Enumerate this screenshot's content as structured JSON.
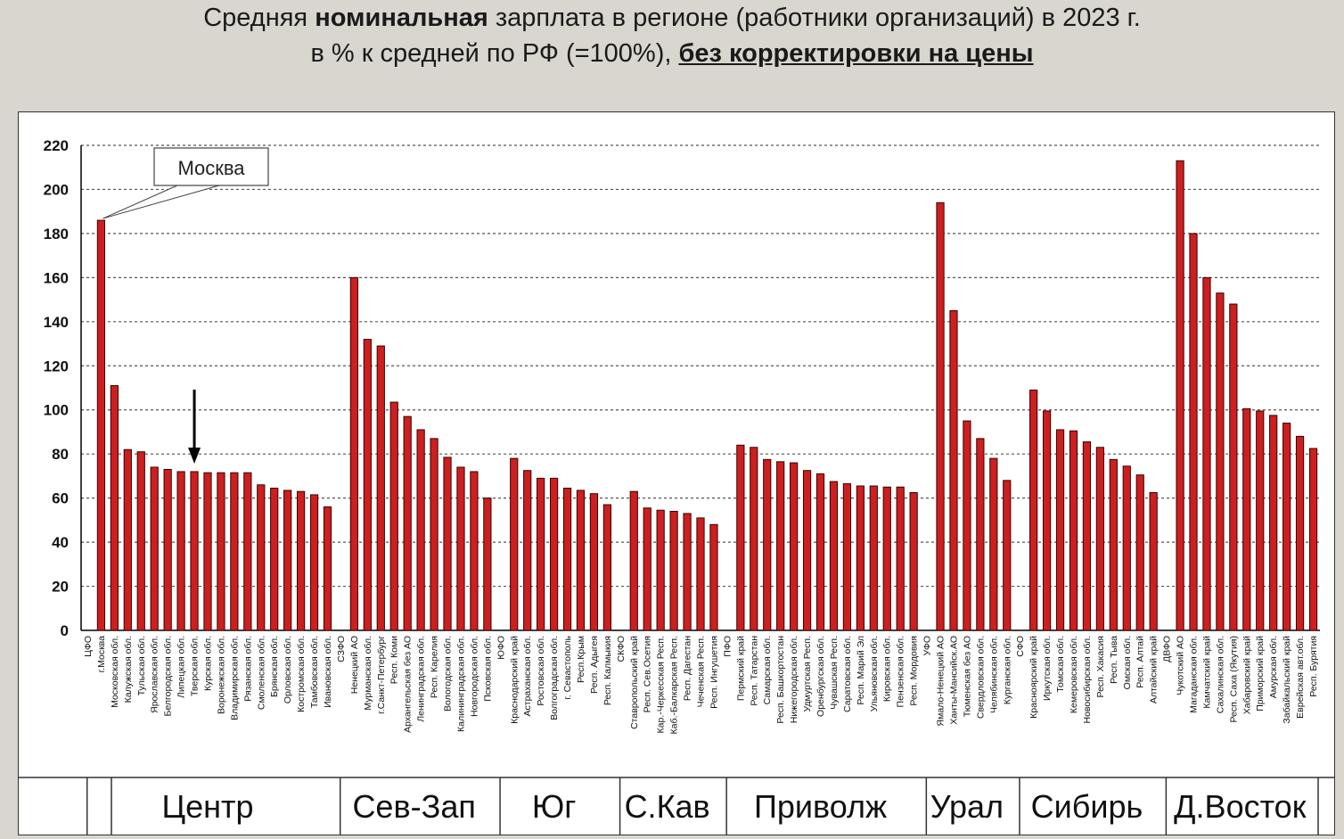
{
  "title": {
    "line1_prefix": "Средняя ",
    "line1_bold": "номинальная",
    "line1_suffix": " зарплата в регионе (работники организаций) в 2023 г.",
    "line2_prefix": "в % к средней по РФ (=100%), ",
    "line2_emph": "без корректировки на цены"
  },
  "colors": {
    "bar": "#cc1f1f",
    "bar_edge": "#3a0000",
    "grid": "#555555",
    "page_bg": "#d9d6cf"
  },
  "annotation": {
    "moscow_label": "Москва"
  },
  "chart_data": {
    "type": "bar",
    "title": "Средняя номинальная зарплата в регионе (работники организаций) в 2023 г. в % к средней по РФ (=100%), без корректировки на цены",
    "ylim": [
      0,
      220
    ],
    "yticks": [
      0,
      20,
      40,
      60,
      80,
      100,
      120,
      140,
      160,
      180,
      200,
      220
    ],
    "grid": true,
    "legend": "none",
    "categories": [
      "ЦФО",
      "г.Москва",
      "Московская обл.",
      "Калужская обл.",
      "Тульская обл.",
      "Ярославская обл.",
      "Белгородская обл.",
      "Липецкая обл.",
      "Тверская обл.",
      "Курская обл.",
      "Воронежская обл.",
      "Владимирская обл.",
      "Рязанская обл.",
      "Смоленская обл.",
      "Брянская обл.",
      "Орловская обл.",
      "Костромская обл.",
      "Тамбовская обл.",
      "Ивановская обл.",
      "СЗФО",
      "Ненецкий АО",
      "Мурманская обл.",
      "г.Санкт-Петербург",
      "Респ. Коми",
      "Архангельская без АО",
      "Ленинградская обл.",
      "Респ. Карелия",
      "Вологодская обл.",
      "Калининградская обл.",
      "Новгородская обл.",
      "Псковская обл.",
      "ЮФО",
      "Краснодарский край",
      "Астраханская обл.",
      "Ростовская обл.",
      "Волгоградская обл.",
      "г. Севастополь",
      "Респ.Крым",
      "Респ. Адыгея",
      "Респ. Калмыкия",
      "СКФО",
      "Ставропольский край",
      "Респ. Сев.Осетия",
      "Кар.-Черкесская Респ.",
      "Каб.-Балкарская Респ.",
      "Респ. Дагестан",
      "Чеченская Респ.",
      "Респ. Ингушетия",
      "ПФО",
      "Пермский край",
      "Респ. Татарстан",
      "Самарская обл.",
      "Респ. Башкортостан",
      "Нижегородская обл.",
      "Удмуртская Респ.",
      "Оренбургская обл.",
      "Чувашская Респ.",
      "Саратовская обл.",
      "Респ. Марий Эл",
      "Ульяновская обл.",
      "Кировская обл.",
      "Пензенская обл.",
      "Респ. Мордовия",
      "УФО",
      "Ямало-Ненецкий АО",
      "Ханты-Мансийск.АО",
      "Тюменская без АО",
      "Свердловская обл.",
      "Челябинская обл.",
      "Курганская обл.",
      "СФО",
      "Красноярский край",
      "Иркутская обл.",
      "Томская обл.",
      "Кемеровская обл.",
      "Новосибирская обл.",
      "Респ. Хакасия",
      "Респ. Тыва",
      "Омская обл.",
      "Респ. Алтай",
      "Алтайский край",
      "ДВФО",
      "Чукотский АО",
      "Магаданская обл.",
      "Камчатский край",
      "Сахалинская обл.",
      "Респ. Саха (Якутия)",
      "Хабаровский край",
      "Приморский край",
      "Амурская обл.",
      "Забайкальский край",
      "Еврейская авт.обл.",
      "Респ. Бурятия"
    ],
    "values": [
      null,
      186,
      111,
      82,
      81,
      74,
      73,
      72,
      72,
      71.5,
      71.5,
      71.5,
      71.5,
      66,
      64.5,
      63.5,
      63,
      61.5,
      56,
      null,
      160,
      132,
      129,
      103.5,
      97,
      91,
      87,
      78.5,
      74,
      72,
      60,
      null,
      78,
      72.5,
      69,
      69,
      64.5,
      63.5,
      62,
      57,
      null,
      63,
      55.5,
      54.5,
      54,
      53,
      51,
      48,
      null,
      84,
      83,
      77.5,
      76.5,
      76,
      72.5,
      71,
      67.5,
      66.5,
      65.5,
      65.5,
      65,
      65,
      62.5,
      null,
      194,
      145,
      95,
      87,
      78,
      68,
      null,
      109,
      99.5,
      91,
      90.5,
      85.5,
      83,
      77.5,
      74.5,
      70.5,
      62.5,
      null,
      213,
      180,
      160,
      153,
      148,
      100.5,
      99.5,
      97.5,
      94,
      88,
      82.5
    ],
    "districts": [
      {
        "name": "Центр",
        "start": 0,
        "end": 18
      },
      {
        "name": "Сев-Зап",
        "start": 19,
        "end": 30
      },
      {
        "name": "Юг",
        "start": 31,
        "end": 39
      },
      {
        "name": "С.Кав",
        "start": 40,
        "end": 47
      },
      {
        "name": "Приволж",
        "start": 48,
        "end": 62
      },
      {
        "name": "Урал",
        "start": 63,
        "end": 69
      },
      {
        "name": "Сибирь",
        "start": 70,
        "end": 80
      },
      {
        "name": "Д.Восток",
        "start": 81,
        "end": 92
      }
    ]
  }
}
